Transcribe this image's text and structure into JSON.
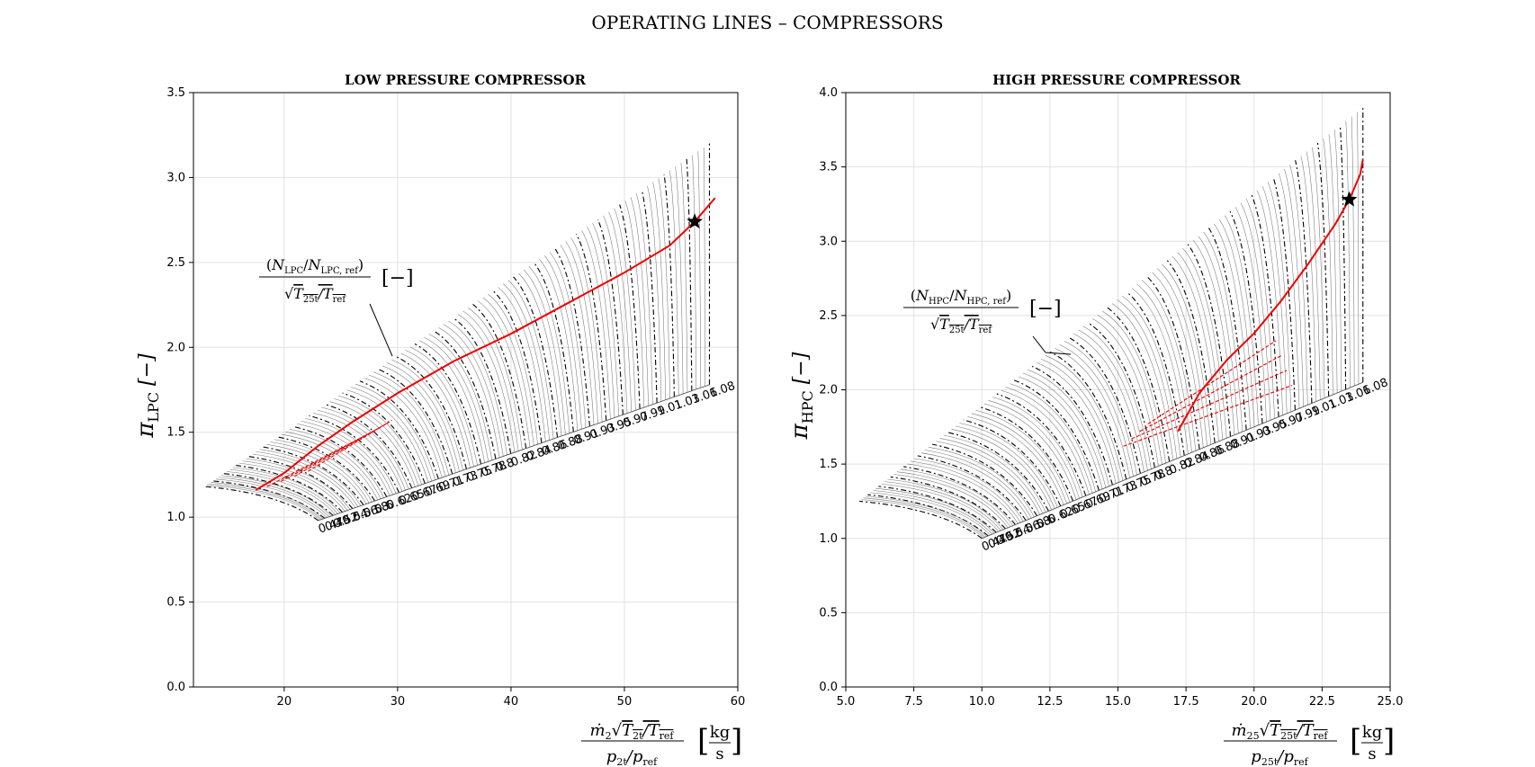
{
  "figure": {
    "title": "OPERATING LINES  –  COMPRESSORS"
  },
  "colors": {
    "operating_line": "#ee0000",
    "map_lines": "#555555",
    "speed_lines": "#000000",
    "grid": "#e2e2e2"
  },
  "chart_data": [
    {
      "type": "line",
      "title": "LOW PRESSURE COMPRESSOR",
      "xlabel": "ṁ₂ √(T₂t/T_ref) / (p₂t/p_ref) [kg/s]",
      "ylabel": "π_LPC [−]",
      "annotation": "(N_LPC/N_LPC,ref) / √(T25t/T_ref) [−]",
      "xlim": [
        12,
        60
      ],
      "ylim": [
        0,
        3.5
      ],
      "xticks": [
        "20",
        "30",
        "40",
        "50",
        "60"
      ],
      "yticks": [
        "0.0",
        "0.5",
        "1.0",
        "1.5",
        "2.0",
        "2.5",
        "3.0",
        "3.5"
      ],
      "grid": true,
      "speed_labels": [
        "0.47",
        "0.49",
        "0.52",
        "0.54",
        "0.56",
        "0.58",
        "0.6",
        "0.62",
        "0.65",
        "0.67",
        "0.69",
        "0.71",
        "0.73",
        "0.75",
        "0.78",
        "0.8",
        "0.82",
        "0.84",
        "0.86",
        "0.88",
        "0.91",
        "0.93",
        "0.95",
        "0.97",
        "0.99",
        "1.01",
        "1.03",
        "1.06",
        "1.08"
      ],
      "speed_lines": {
        "choke_start": [
          23.0,
          0.98
        ],
        "choke_end": [
          57.5,
          1.78
        ],
        "surge_start": [
          13.0,
          1.18
        ],
        "surge_end": [
          57.5,
          3.2
        ]
      },
      "operating_line": {
        "x": [
          17.5,
          20,
          23,
          26,
          30,
          35,
          40,
          45,
          50,
          54,
          56.2,
          58
        ],
        "y": [
          1.16,
          1.26,
          1.42,
          1.56,
          1.73,
          1.92,
          2.08,
          2.26,
          2.44,
          2.6,
          2.74,
          2.88
        ]
      },
      "design_point": {
        "x": 56.2,
        "y": 2.74
      }
    },
    {
      "type": "line",
      "title": "HIGH PRESSURE COMPRESSOR",
      "xlabel": "ṁ₂₅ √(T₂₅t/T_ref) / (p₂₅t/p_ref) [kg/s]",
      "ylabel": "π_HPC [−]",
      "annotation": "(N_HPC/N_HPC,ref) / √(T25t/T_ref) [−]",
      "xlim": [
        5,
        25
      ],
      "ylim": [
        0,
        4
      ],
      "xticks": [
        "5.0",
        "7.5",
        "10.0",
        "12.5",
        "15.0",
        "17.5",
        "20.0",
        "22.5",
        "25.0"
      ],
      "yticks": [
        "0.0",
        "0.5",
        "1.0",
        "1.5",
        "2.0",
        "2.5",
        "3.0",
        "3.5",
        "4.0"
      ],
      "grid": true,
      "speed_labels": [
        "0.47",
        "0.49",
        "0.52",
        "0.54",
        "0.56",
        "0.58",
        "0.6",
        "0.62",
        "0.65",
        "0.67",
        "0.69",
        "0.71",
        "0.73",
        "0.75",
        "0.78",
        "0.8",
        "0.82",
        "0.84",
        "0.86",
        "0.88",
        "0.91",
        "0.93",
        "0.95",
        "0.97",
        "0.99",
        "1.01",
        "1.03",
        "1.06",
        "1.08"
      ],
      "speed_lines": {
        "choke_start": [
          10.0,
          1.0
        ],
        "choke_end": [
          24.0,
          2.05
        ],
        "surge_start": [
          5.5,
          1.25
        ],
        "surge_end": [
          24.0,
          3.9
        ]
      },
      "operating_line": {
        "x": [
          17.2,
          18.0,
          19.0,
          20.0,
          21.0,
          22.0,
          23.0,
          23.5,
          23.9,
          24.0
        ],
        "y": [
          1.72,
          1.98,
          2.2,
          2.38,
          2.6,
          2.85,
          3.12,
          3.28,
          3.45,
          3.55
        ]
      },
      "design_point": {
        "x": 23.5,
        "y": 3.28
      }
    }
  ]
}
